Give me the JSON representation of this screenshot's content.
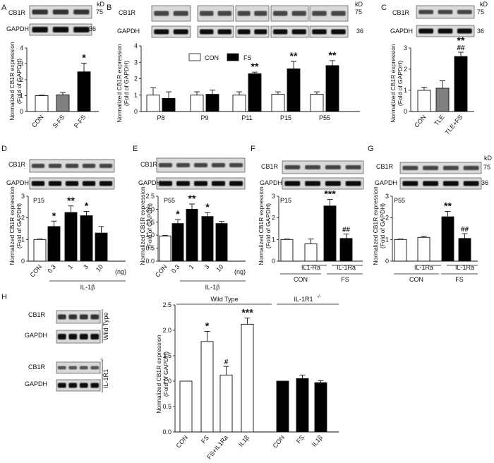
{
  "blot_labels": {
    "cb1r": "CB1R",
    "gapdh": "GAPDH",
    "kd": "kD",
    "mw75": "75",
    "mw36": "36"
  },
  "panels": {
    "A": {
      "letter": "A",
      "ylabel": "Normalized CB1R expression",
      "ylabel2": "(Fold of GAPDH)"
    },
    "B": {
      "letter": "B",
      "ylabel": "Normalized CB1R expression",
      "ylabel2": "(Fold of GAPDH)"
    },
    "C": {
      "letter": "C",
      "ylabel": "Normalized CB1R expression",
      "ylabel2": "(Fold of GAPDH)"
    },
    "D": {
      "letter": "D",
      "ylabel": "Normalized CB1R expression",
      "ylabel2": "(Fold of GAPDH)",
      "note": "P15",
      "xgroup": "IL-1β",
      "unit": "(ng)"
    },
    "E": {
      "letter": "E",
      "ylabel": "Normalized CB1R expression",
      "ylabel2": "(Fold of GAPDH)",
      "note": "P55",
      "xgroup": "IL-1β",
      "unit": "(ng)"
    },
    "F": {
      "letter": "F",
      "ylabel": "Normalized CB1R expression",
      "ylabel2": "(Fold of GAPDH)",
      "note": "P15",
      "g1": "CON",
      "g2": "FS",
      "sub1": "IL1-Ra",
      "sub2": "IL-1Ra"
    },
    "G": {
      "letter": "G",
      "ylabel": "Normalized CB1R expression",
      "ylabel2": "(Fold of GAPDH)",
      "note": "P55",
      "g1": "CON",
      "g2": "FS",
      "sub1": "IL-1Ra",
      "sub2": "IL-1Ra"
    },
    "H": {
      "letter": "H",
      "ylabel": "Normalized CB1R expression",
      "ylabel2": "(Fold of GAPDH)",
      "wt": "Wild Type",
      "ko": "IL-1R1",
      "ko_sup": "-/-"
    }
  },
  "legend": {
    "con": "CON",
    "fs": "FS"
  },
  "colors": {
    "white": "#ffffff",
    "gray": "#7f7f7f",
    "black": "#000000"
  },
  "chart_data": [
    {
      "id": "A",
      "type": "bar",
      "categories": [
        "CON",
        "S-FS",
        "P-FS"
      ],
      "values": [
        1.0,
        1.05,
        2.5
      ],
      "errors": [
        0.03,
        0.15,
        0.55
      ],
      "colors": [
        "white",
        "gray",
        "black"
      ],
      "marks": [
        "",
        "",
        "*"
      ],
      "ylim": [
        0,
        4
      ],
      "yticks": [
        0,
        1,
        2,
        3,
        4
      ]
    },
    {
      "id": "B",
      "type": "bar",
      "categories": [
        "P8",
        "P9",
        "P11",
        "P15",
        "P55"
      ],
      "series": [
        {
          "name": "CON",
          "values": [
            1.0,
            1.0,
            1.0,
            1.05,
            1.05
          ],
          "errors": [
            0.45,
            0.2,
            0.2,
            0.15,
            0.15
          ]
        },
        {
          "name": "FS",
          "values": [
            0.8,
            1.05,
            2.3,
            2.6,
            2.8
          ],
          "errors": [
            0.4,
            0.25,
            0.1,
            0.45,
            0.3
          ]
        }
      ],
      "marks": [
        "",
        "",
        "**",
        "**",
        "**"
      ],
      "ylim": [
        0,
        4
      ],
      "yticks": [
        0,
        1,
        2,
        3,
        4
      ],
      "legend": "top-center"
    },
    {
      "id": "C",
      "type": "bar",
      "categories": [
        "CON",
        "TLE",
        "TLE+FS"
      ],
      "values": [
        1.0,
        1.1,
        2.6
      ],
      "errors": [
        0.15,
        0.35,
        0.2
      ],
      "colors": [
        "white",
        "gray",
        "black"
      ],
      "marks": [
        "",
        "",
        "**"
      ],
      "marks2": [
        "",
        "",
        "##"
      ],
      "ylim": [
        0,
        3
      ],
      "yticks": [
        0,
        1,
        2,
        3
      ]
    },
    {
      "id": "D",
      "type": "bar",
      "categories": [
        "CON",
        "0.3",
        "1",
        "3",
        "10"
      ],
      "values": [
        1.0,
        1.6,
        2.25,
        2.1,
        1.3
      ],
      "errors": [
        0.02,
        0.25,
        0.3,
        0.2,
        0.3
      ],
      "colors": [
        "white",
        "black",
        "black",
        "black",
        "black"
      ],
      "marks": [
        "",
        "*",
        "**",
        "*",
        ""
      ],
      "ylim": [
        0,
        3
      ],
      "yticks": [
        0,
        1,
        2,
        3
      ]
    },
    {
      "id": "E",
      "type": "bar",
      "categories": [
        "CON",
        "0.3",
        "1",
        "3",
        "10"
      ],
      "values": [
        0.97,
        1.45,
        2.0,
        1.72,
        1.45
      ],
      "errors": [
        0.02,
        0.15,
        0.2,
        0.15,
        0.08
      ],
      "colors": [
        "white",
        "black",
        "black",
        "black",
        "black"
      ],
      "marks": [
        "",
        "*",
        "**",
        "*",
        ""
      ],
      "ylim": [
        0,
        2.5
      ],
      "yticks": [
        0,
        0.5,
        1.0,
        1.5,
        2.0,
        2.5
      ]
    },
    {
      "id": "F",
      "type": "bar",
      "categories": [
        "",
        "IL1-Ra",
        "",
        "IL-1Ra"
      ],
      "values": [
        1.0,
        0.8,
        2.55,
        1.05
      ],
      "errors": [
        0.02,
        0.22,
        0.3,
        0.2
      ],
      "colors": [
        "white",
        "white",
        "black",
        "black"
      ],
      "marks": [
        "",
        "",
        "***",
        ""
      ],
      "marks2": [
        "",
        "",
        "",
        "##"
      ],
      "ylim": [
        0,
        3
      ],
      "yticks": [
        0,
        1,
        2,
        3
      ]
    },
    {
      "id": "G",
      "type": "bar",
      "categories": [
        "",
        "IL-1Ra",
        "",
        "IL-1Ra"
      ],
      "values": [
        1.0,
        1.1,
        2.05,
        1.05
      ],
      "errors": [
        0.02,
        0.05,
        0.25,
        0.22
      ],
      "colors": [
        "white",
        "white",
        "black",
        "black"
      ],
      "marks": [
        "",
        "",
        "**",
        ""
      ],
      "marks2": [
        "",
        "",
        "",
        "##"
      ],
      "ylim": [
        0,
        3
      ],
      "yticks": [
        0,
        1,
        2,
        3
      ]
    },
    {
      "id": "H",
      "type": "bar",
      "categories": [
        "CON",
        "FS",
        "FS+IL1Ra",
        "IL1β",
        "CON",
        "FS",
        "IL1β"
      ],
      "values": [
        1.0,
        1.78,
        1.12,
        2.12,
        1.0,
        1.05,
        0.97
      ],
      "errors": [
        0.0,
        0.2,
        0.17,
        0.12,
        0.0,
        0.07,
        0.04
      ],
      "colors": [
        "white",
        "white",
        "white",
        "white",
        "black",
        "black",
        "black"
      ],
      "marks": [
        "",
        "*",
        "#",
        "***",
        "",
        "",
        ""
      ],
      "ylim": [
        0,
        2.5
      ],
      "yticks": [
        0,
        0.5,
        1.0,
        1.5,
        2.0,
        2.5
      ]
    }
  ]
}
